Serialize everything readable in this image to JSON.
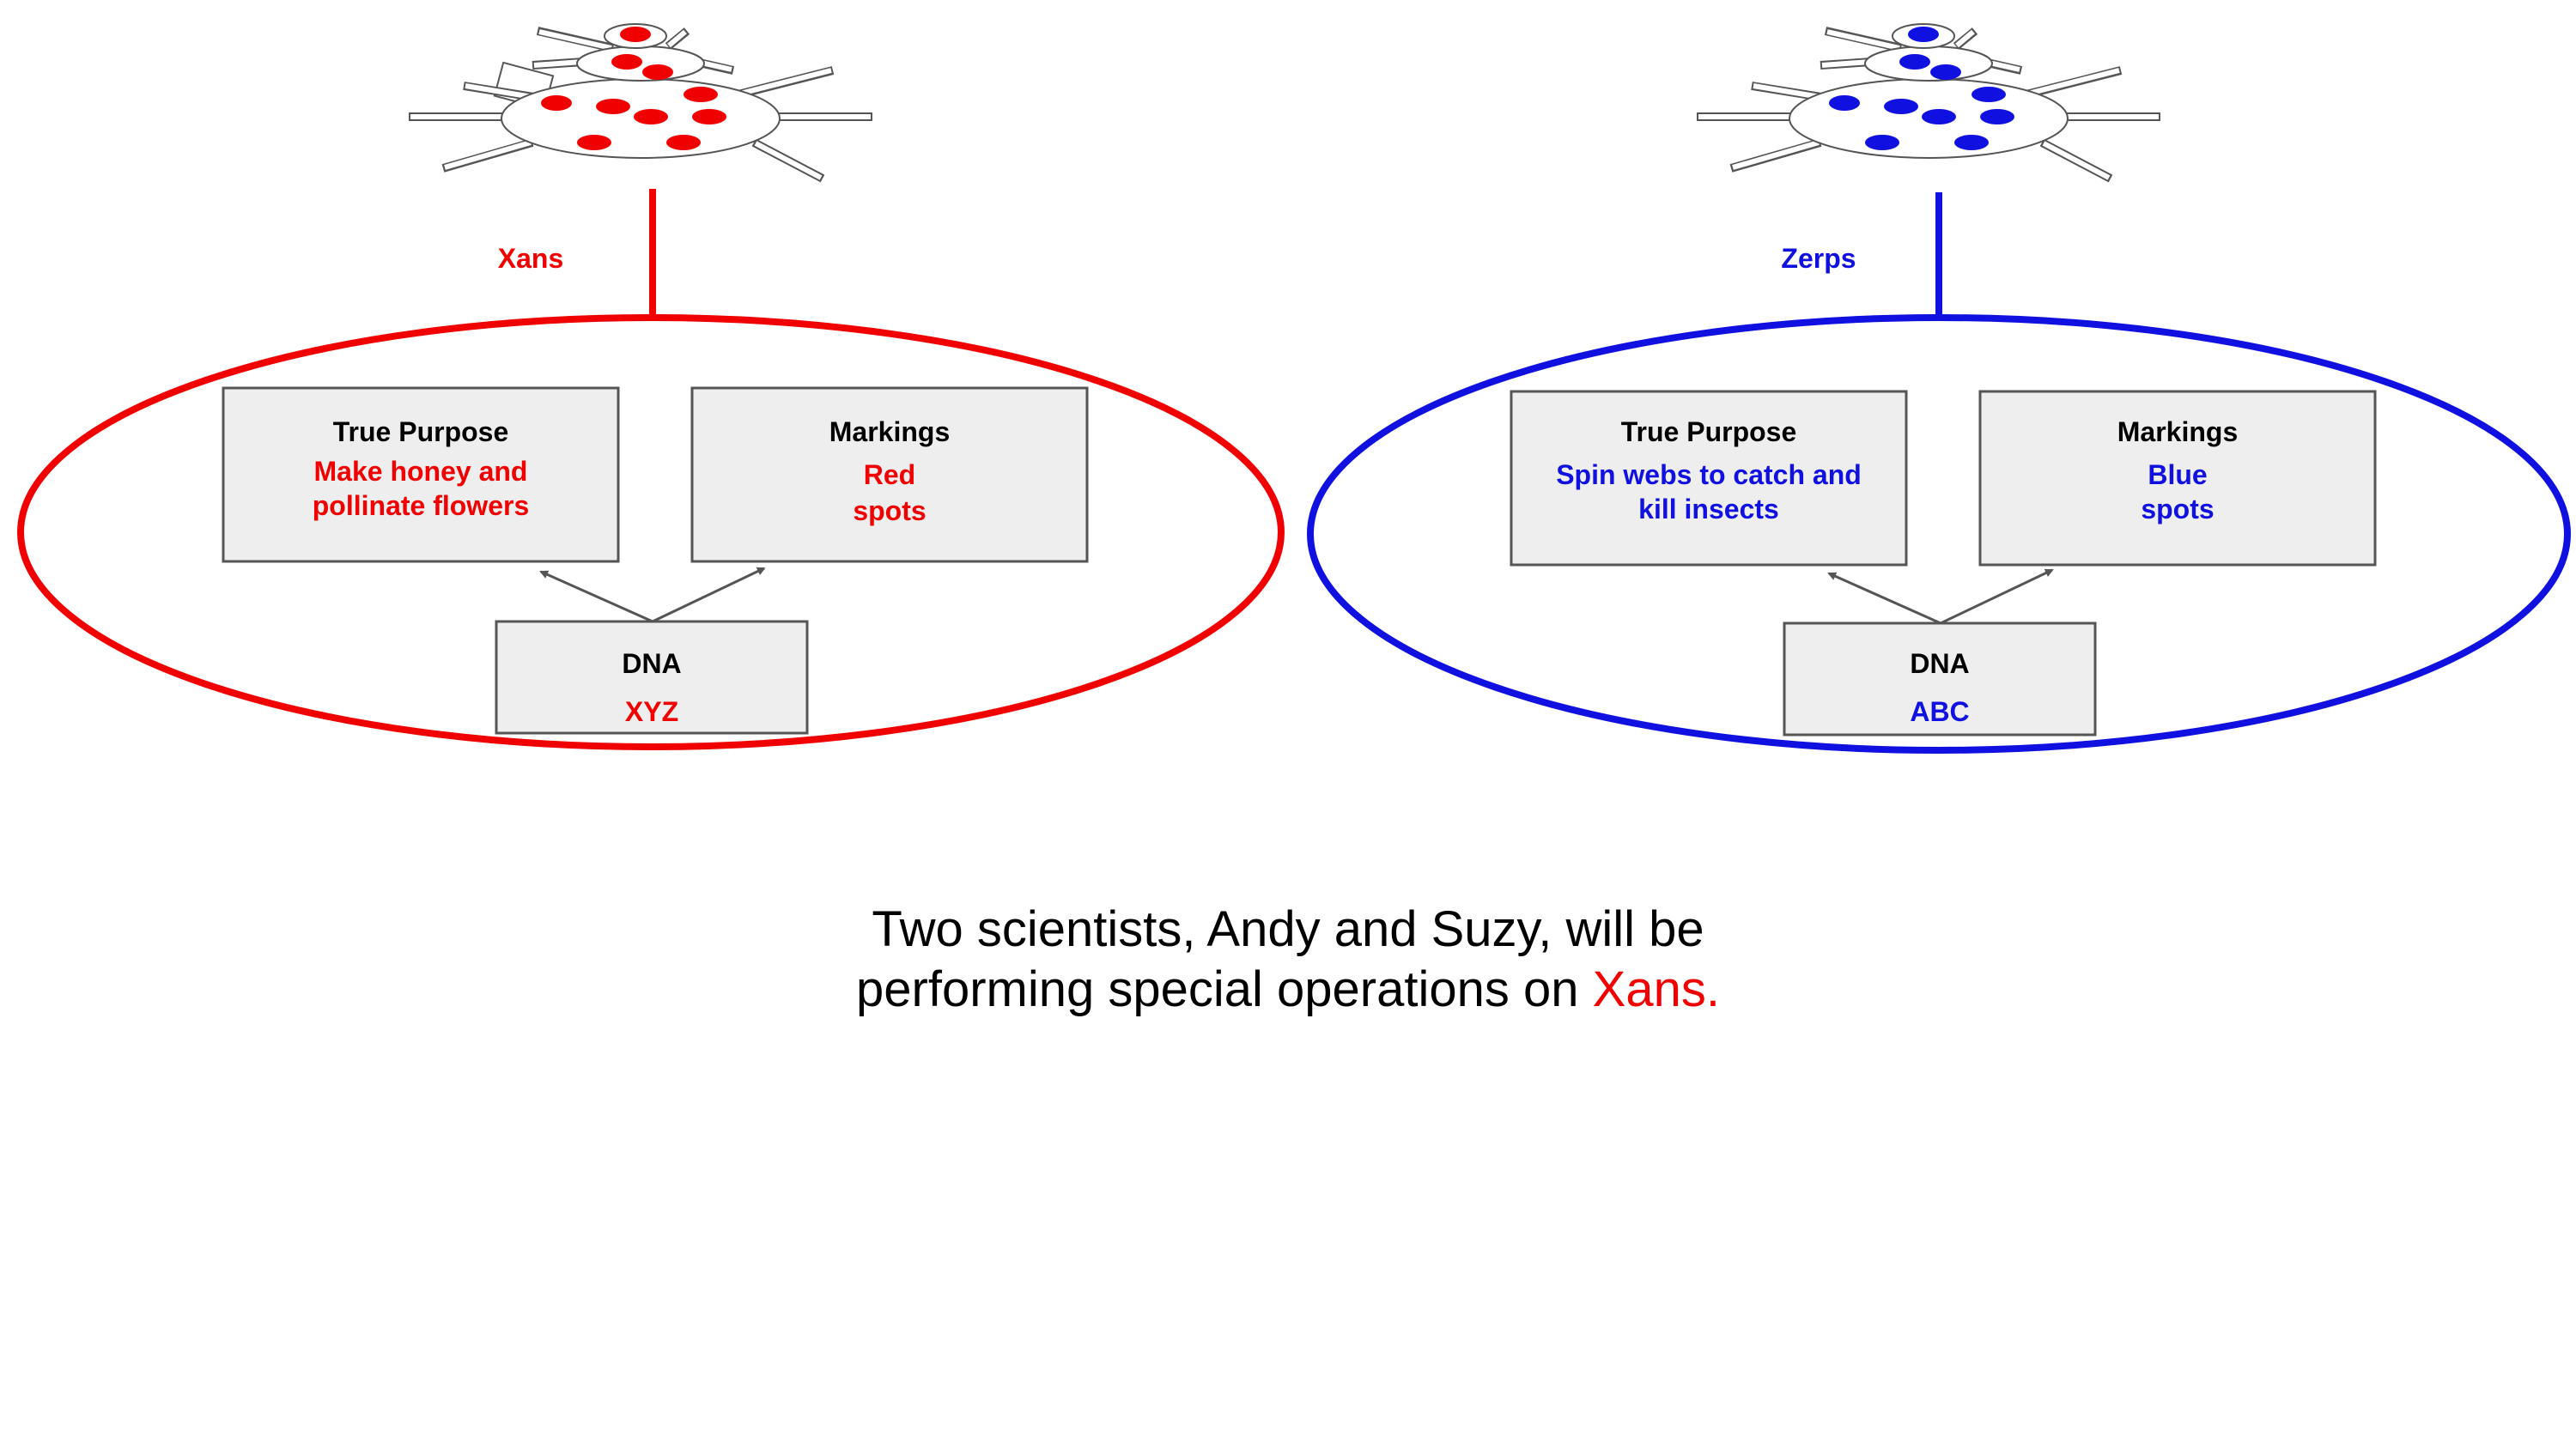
{
  "colors": {
    "xans": "#f00000",
    "zerps": "#1010e0",
    "box_fill": "#eeeeee",
    "box_stroke": "#555555",
    "arrow": "#555555"
  },
  "groups": [
    {
      "name": "Xans",
      "color": "#f00000",
      "true_purpose": {
        "title": "True Purpose",
        "line1": "Make honey and",
        "line2": "pollinate flowers"
      },
      "markings": {
        "title": "Markings",
        "line1": "Red",
        "line2": "spots"
      },
      "dna": {
        "title": "DNA",
        "value": "XYZ"
      }
    },
    {
      "name": "Zerps",
      "color": "#1010e0",
      "true_purpose": {
        "title": "True Purpose",
        "line1": "Spin webs to catch and",
        "line2": "kill insects"
      },
      "markings": {
        "title": "Markings",
        "line1": "Blue",
        "line2": "spots"
      },
      "dna": {
        "title": "DNA",
        "value": "ABC"
      }
    }
  ],
  "caption": {
    "line1": "Two scientists, Andy and Suzy, will be",
    "line2_prefix": "performing special operations on ",
    "line2_highlight": "Xans."
  }
}
